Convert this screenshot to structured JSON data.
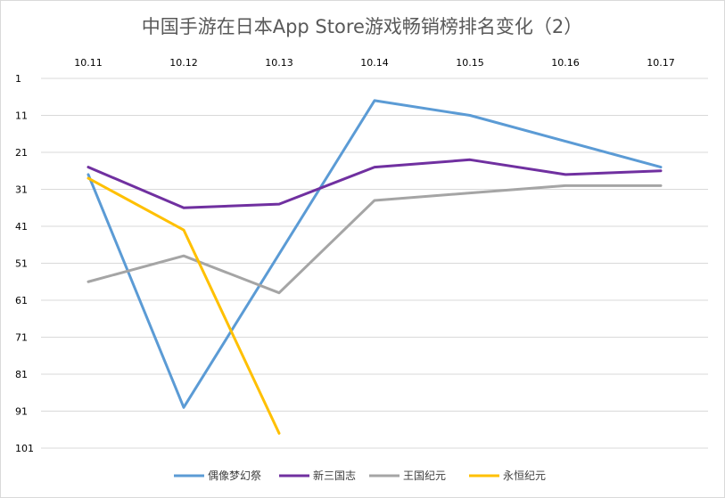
{
  "chart_data": {
    "type": "line",
    "title": "中国手游在日本App Store游戏畅销榜排名变化（2）",
    "x": [
      "10.11",
      "10.12",
      "10.13",
      "10.14",
      "10.15",
      "10.16",
      "10.17"
    ],
    "x_axis_position": "top",
    "ylim": [
      1,
      101
    ],
    "y_reversed": true,
    "y_ticks": [
      "1",
      "11",
      "21",
      "31",
      "41",
      "51",
      "61",
      "71",
      "81",
      "91",
      "101"
    ],
    "xlabel": "",
    "ylabel": "",
    "grid": true,
    "legend_position": "bottom",
    "series": [
      {
        "name": "偶像梦幻祭",
        "color": "#5b9bd5",
        "values": [
          27,
          90,
          null,
          7,
          11,
          18,
          25
        ]
      },
      {
        "name": "新三国志",
        "color": "#7030a0",
        "values": [
          25,
          36,
          35,
          25,
          23,
          27,
          26
        ]
      },
      {
        "name": "王国纪元",
        "color": "#a5a5a5",
        "values": [
          56,
          49,
          59,
          34,
          32,
          30,
          30
        ]
      },
      {
        "name": "永恒纪元",
        "color": "#ffc000",
        "values": [
          28,
          42,
          97,
          null,
          null,
          null,
          null
        ]
      }
    ]
  }
}
